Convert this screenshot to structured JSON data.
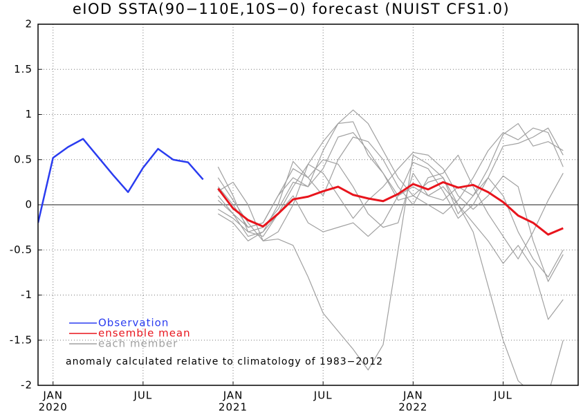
{
  "chart_data": {
    "type": "line",
    "title": "eIOD SSTA(90−110E,10S−0) forecast (NUIST CFS1.0)",
    "annotation": "anomaly calculated relative to climatology of 1983−2012",
    "xlim": [
      -1,
      35
    ],
    "ylim": [
      -2,
      2
    ],
    "yticks": [
      2,
      1.5,
      1,
      0.5,
      0,
      -0.5,
      -1,
      -1.5,
      -2
    ],
    "xticks": [
      {
        "value": 0,
        "label": "JAN",
        "year": "2020"
      },
      {
        "value": 6,
        "label": "JUL"
      },
      {
        "value": 12,
        "label": "JAN",
        "year": "2021"
      },
      {
        "value": 18,
        "label": "JUL"
      },
      {
        "value": 24,
        "label": "JAN",
        "year": "2022"
      },
      {
        "value": 30,
        "label": "JUL"
      }
    ],
    "grid": true,
    "legend": "lower left",
    "series": [
      {
        "name": "Observation",
        "color": "#2a3cf0",
        "x": [
          -1,
          0,
          1,
          2,
          3,
          4,
          5,
          6,
          7,
          8,
          9,
          10
        ],
        "values": [
          -0.2,
          0.52,
          0.64,
          0.73,
          0.53,
          0.33,
          0.14,
          0.41,
          0.62,
          0.5,
          0.47,
          0.28
        ]
      },
      {
        "name": "ensemble mean",
        "color": "#e8141c",
        "x": [
          11,
          12,
          13,
          14,
          15,
          16,
          17,
          18,
          19,
          20,
          21,
          22,
          23,
          24,
          25,
          26,
          27,
          28,
          29,
          30,
          31,
          32,
          33,
          34
        ],
        "values": [
          0.18,
          -0.04,
          -0.17,
          -0.24,
          -0.1,
          0.06,
          0.09,
          0.15,
          0.2,
          0.11,
          0.07,
          0.04,
          0.12,
          0.23,
          0.17,
          0.25,
          0.19,
          0.22,
          0.14,
          0.03,
          -0.12,
          -0.2,
          -0.33,
          -0.26
        ]
      },
      {
        "name": "each member",
        "color": "#a0a0a0",
        "x": [
          11,
          12,
          13,
          14,
          15,
          16,
          17,
          18,
          19,
          20,
          21,
          22,
          23,
          24,
          25,
          26,
          27,
          28,
          29,
          30,
          31,
          32,
          33,
          34
        ],
        "members": [
          [
            0.42,
            0.1,
            -0.3,
            -0.35,
            -0.1,
            0.2,
            0.45,
            0.7,
            0.9,
            1.05,
            0.9,
            0.6,
            0.3,
            0.1,
            0.0,
            -0.1,
            0.05,
            0.3,
            0.6,
            0.8,
            0.72,
            0.85,
            0.8,
            0.42
          ],
          [
            0.3,
            0.05,
            -0.2,
            -0.4,
            -0.38,
            -0.45,
            -0.8,
            -1.2,
            -1.4,
            -1.6,
            -1.83,
            -1.55,
            -0.5,
            0.55,
            0.45,
            0.3,
            0.0,
            -0.3,
            -0.9,
            -1.5,
            -1.95,
            -2.1,
            -2.1,
            -1.5
          ],
          [
            0.1,
            -0.1,
            -0.35,
            -0.3,
            0.0,
            0.48,
            0.3,
            0.1,
            0.5,
            0.75,
            0.7,
            0.5,
            0.2,
            0.0,
            0.3,
            0.35,
            0.55,
            0.2,
            -0.1,
            -0.35,
            -0.6,
            -0.3,
            0.05,
            0.35
          ],
          [
            0.2,
            0.0,
            -0.25,
            -0.2,
            0.1,
            0.3,
            0.2,
            0.6,
            0.9,
            0.92,
            0.55,
            0.35,
            0.1,
            0.47,
            0.4,
            0.15,
            -0.15,
            0.0,
            0.3,
            0.65,
            0.68,
            0.75,
            0.85,
            0.55
          ],
          [
            -0.1,
            -0.2,
            -0.4,
            -0.3,
            -0.1,
            0.1,
            -0.2,
            -0.3,
            -0.25,
            -0.2,
            -0.35,
            -0.2,
            0.1,
            0.2,
            0.1,
            0.2,
            0.0,
            -0.2,
            -0.4,
            -0.65,
            -0.45,
            -0.7,
            -1.27,
            -1.05
          ],
          [
            0.05,
            -0.1,
            -0.25,
            -0.2,
            0.1,
            0.4,
            0.3,
            0.5,
            0.45,
            0.2,
            -0.1,
            -0.25,
            -0.2,
            0.35,
            0.1,
            0.05,
            0.2,
            0.1,
            0.3,
            0.1,
            -0.3,
            -0.6,
            -0.8,
            -0.5
          ],
          [
            0.15,
            0.25,
            0.0,
            -0.4,
            -0.3,
            0.0,
            0.45,
            0.35,
            0.1,
            -0.15,
            0.05,
            0.2,
            0.4,
            0.58,
            0.55,
            0.4,
            0.1,
            -0.05,
            0.1,
            0.32,
            0.2,
            -0.4,
            -0.85,
            -0.55
          ],
          [
            -0.05,
            -0.15,
            -0.3,
            -0.25,
            -0.05,
            0.25,
            0.2,
            0.4,
            0.75,
            0.8,
            0.6,
            0.35,
            0.05,
            0.1,
            0.25,
            0.3,
            -0.1,
            0.1,
            0.4,
            0.78,
            0.9,
            0.65,
            0.7,
            0.6
          ]
        ]
      }
    ]
  }
}
